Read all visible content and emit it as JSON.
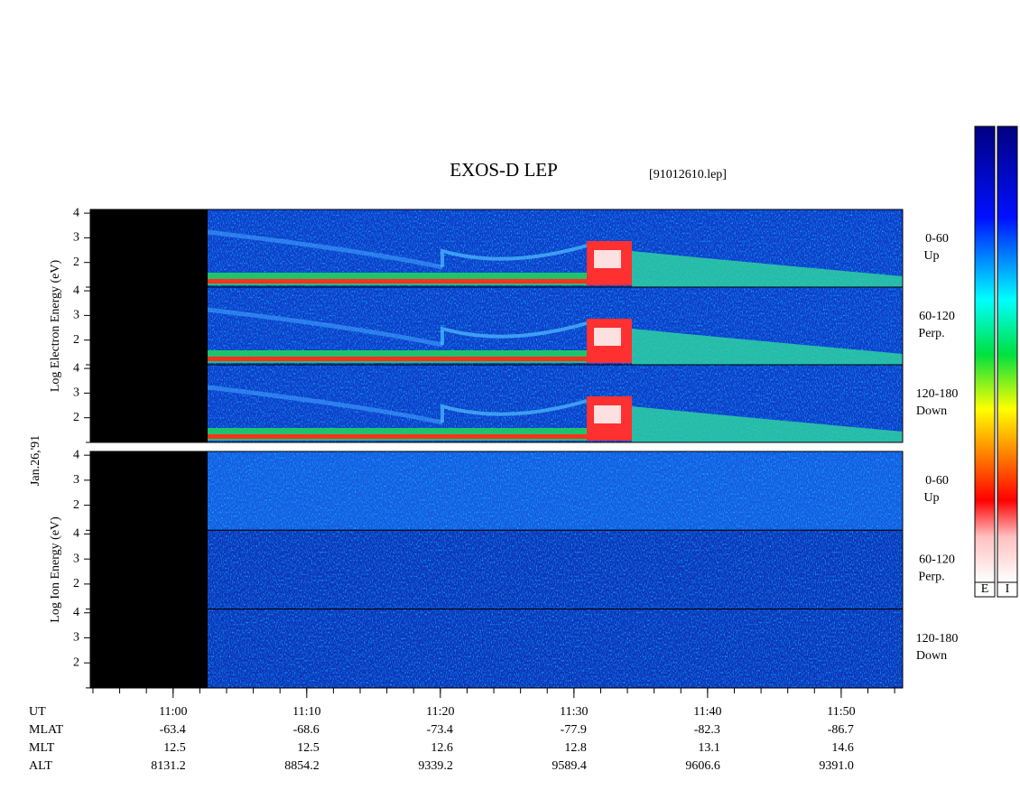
{
  "chart_data": {
    "type": "spectrogram",
    "title": "EXOS-D LEP",
    "subtitle": "[91012610.lep]",
    "date_label": "Jan.26,'91",
    "xlim": [
      653.8,
      714.6
    ],
    "xticks": [
      {
        "value": 660,
        "label": "11:00"
      },
      {
        "value": 670,
        "label": "11:10"
      },
      {
        "value": 680,
        "label": "11:20"
      },
      {
        "value": 690,
        "label": "11:30"
      },
      {
        "value": 700,
        "label": "11:40"
      },
      {
        "value": 710,
        "label": "11:50"
      }
    ],
    "xminor": [
      654,
      656,
      658,
      660,
      662,
      664,
      666,
      668,
      670,
      672,
      674,
      676,
      678,
      680,
      682,
      684,
      686,
      688,
      690,
      692,
      694,
      696,
      698,
      700,
      702,
      704,
      706,
      708,
      710,
      712,
      714
    ],
    "ylim": [
      1,
      4.15
    ],
    "yticks": [
      2,
      3,
      4
    ],
    "yminor": [
      1
    ],
    "groups": [
      {
        "axis_label": "Log  Electron  Energy (eV)",
        "panels": [
          {
            "angle": "0-60",
            "direction": "Up"
          },
          {
            "angle": "60-120",
            "direction": "Perp."
          },
          {
            "angle": "120-180",
            "direction": "Down"
          }
        ]
      },
      {
        "axis_label": "Log  Ion  Energy (eV)",
        "panels": [
          {
            "angle": "0-60",
            "direction": "Up"
          },
          {
            "angle": "60-120",
            "direction": "Perp."
          },
          {
            "angle": "120-180",
            "direction": "Down"
          }
        ]
      }
    ],
    "orbit_label": "UT",
    "orbit_rows": [
      {
        "label": "MLAT",
        "values": [
          "-63.4",
          "-68.6",
          "-73.4",
          "-77.9",
          "-82.3",
          "-86.7"
        ]
      },
      {
        "label": "MLT",
        "values": [
          "12.5",
          "12.5",
          "12.6",
          "12.8",
          "13.1",
          "14.6"
        ]
      },
      {
        "label": "ALT",
        "values": [
          "8131.2",
          "8854.2",
          "9339.2",
          "9589.4",
          "9606.6",
          "9391.0"
        ]
      }
    ],
    "colorbars": [
      "E",
      "I"
    ]
  }
}
